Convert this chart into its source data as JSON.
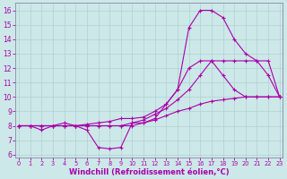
{
  "background_color": "#cce8e8",
  "grid_color": "#b0d0d0",
  "line_color": "#aa00aa",
  "spine_color": "#8888aa",
  "xlabel": "Windchill (Refroidissement éolien,°C)",
  "xlabel_fontsize": 6.0,
  "xticks": [
    0,
    1,
    2,
    3,
    4,
    5,
    6,
    7,
    8,
    9,
    10,
    11,
    12,
    13,
    14,
    15,
    16,
    17,
    18,
    19,
    20,
    21,
    22,
    23
  ],
  "yticks": [
    6,
    7,
    8,
    9,
    10,
    11,
    12,
    13,
    14,
    15,
    16
  ],
  "ylim": [
    5.8,
    16.5
  ],
  "xlim": [
    -0.3,
    23.3
  ],
  "series": [
    {
      "x": [
        0,
        1,
        2,
        3,
        4,
        5,
        6,
        7,
        8,
        9,
        10,
        11,
        12,
        13,
        14,
        15,
        16,
        17,
        18,
        19,
        20,
        21,
        22,
        23
      ],
      "y": [
        8,
        8,
        7.7,
        8,
        8.2,
        8,
        7.7,
        6.5,
        6.4,
        6.5,
        8.2,
        8.2,
        8.5,
        9.5,
        10.5,
        14.8,
        16.0,
        16.0,
        15.5,
        14.0,
        13.0,
        12.5,
        11.5,
        10.0
      ]
    },
    {
      "x": [
        0,
        1,
        2,
        3,
        4,
        5,
        6,
        7,
        8,
        9,
        10,
        11,
        12,
        13,
        14,
        15,
        16,
        17,
        18,
        19,
        20,
        21,
        22,
        23
      ],
      "y": [
        8,
        8,
        8,
        8,
        8,
        8,
        8,
        8,
        8,
        8,
        8.2,
        8.4,
        8.8,
        9.2,
        9.8,
        10.5,
        11.5,
        12.5,
        12.5,
        12.5,
        12.5,
        12.5,
        12.5,
        10.0
      ]
    },
    {
      "x": [
        0,
        1,
        2,
        3,
        4,
        5,
        6,
        7,
        8,
        9,
        10,
        11,
        12,
        13,
        14,
        15,
        16,
        17,
        18,
        19,
        20,
        21,
        22,
        23
      ],
      "y": [
        8,
        8,
        8,
        8,
        8,
        8,
        8.1,
        8.2,
        8.3,
        8.5,
        8.5,
        8.6,
        9.0,
        9.5,
        10.5,
        12.0,
        12.5,
        12.5,
        11.5,
        10.5,
        10.0,
        10.0,
        10.0,
        10.0
      ]
    },
    {
      "x": [
        0,
        1,
        2,
        3,
        4,
        5,
        6,
        7,
        8,
        9,
        10,
        11,
        12,
        13,
        14,
        15,
        16,
        17,
        18,
        19,
        20,
        21,
        22,
        23
      ],
      "y": [
        8,
        8,
        8,
        8,
        8,
        8,
        8,
        8,
        8,
        8,
        8,
        8.2,
        8.4,
        8.7,
        9.0,
        9.2,
        9.5,
        9.7,
        9.8,
        9.9,
        10.0,
        10.0,
        10.0,
        10.0
      ]
    }
  ],
  "marker": "+",
  "marker_size": 3,
  "marker_edge_width": 0.8,
  "line_width": 0.8
}
